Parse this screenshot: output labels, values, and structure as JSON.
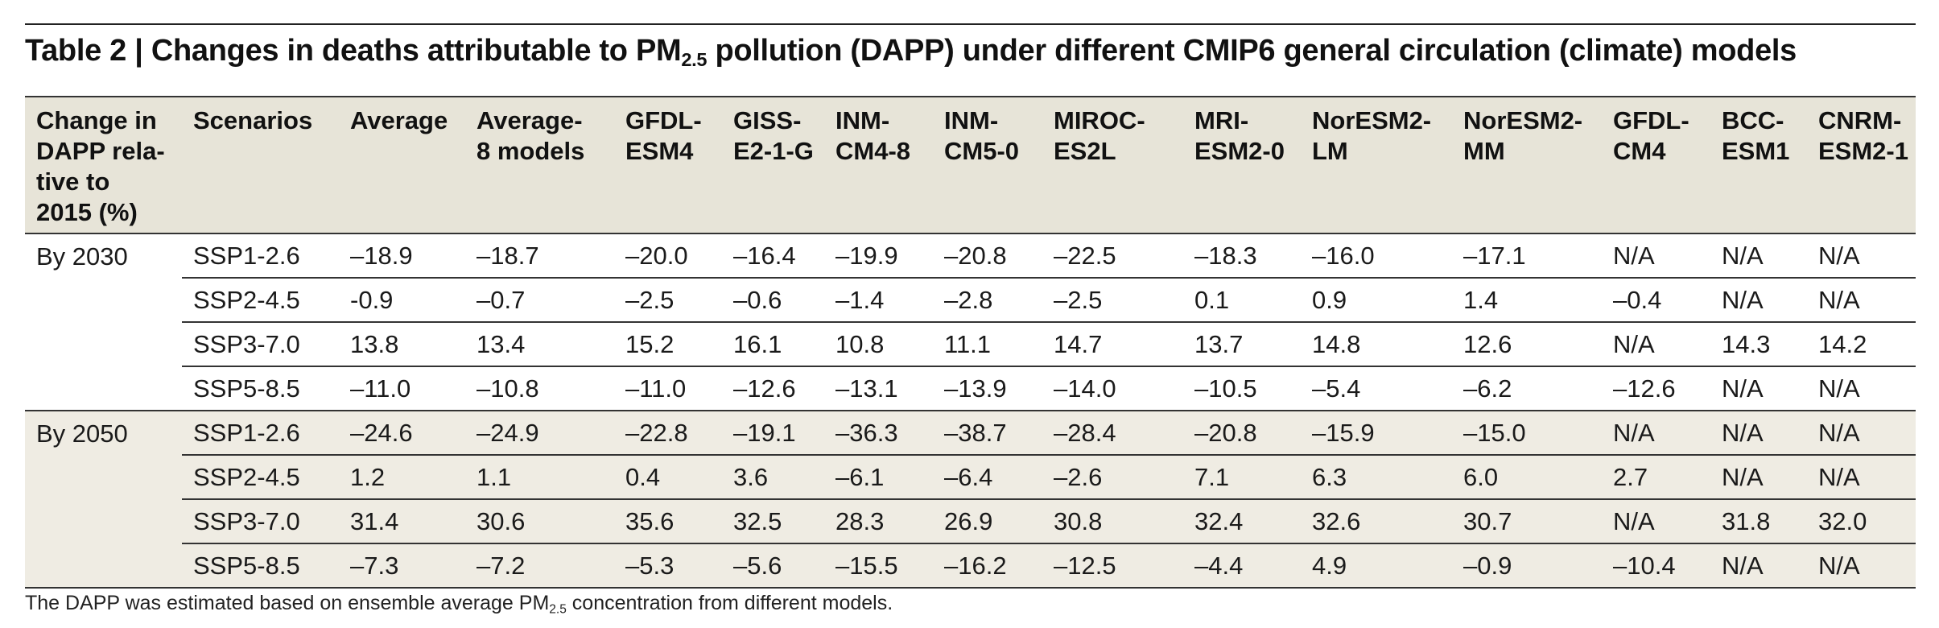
{
  "title": {
    "prefix": "Table 2 | Changes in deaths attributable to PM",
    "sub": "2.5",
    "suffix": " pollution (DAPP) under different CMIP6 general circulation (climate) models"
  },
  "headers": [
    [
      "Change in",
      "DAPP rela-",
      "tive to",
      "2015 (%)"
    ],
    [
      "Scenarios"
    ],
    [
      "Average"
    ],
    [
      "Average-",
      "8 models"
    ],
    [
      "GFDL-",
      "ESM4"
    ],
    [
      "GISS-",
      "E2-1-G"
    ],
    [
      "INM-",
      "CM4-8"
    ],
    [
      "INM-",
      "CM5-0"
    ],
    [
      "MIROC-",
      "ES2L"
    ],
    [
      "MRI-",
      "ESM2-0"
    ],
    [
      "NorESM2-",
      "LM"
    ],
    [
      "NorESM2-",
      "MM"
    ],
    [
      "GFDL-",
      "CM4"
    ],
    [
      "BCC-",
      "ESM1"
    ],
    [
      "CNRM-",
      "ESM2-1"
    ]
  ],
  "groups": [
    {
      "period": "By 2030",
      "rows": [
        [
          "SSP1-2.6",
          "–18.9",
          "–18.7",
          "–20.0",
          "–16.4",
          "–19.9",
          "–20.8",
          "–22.5",
          "–18.3",
          "–16.0",
          "–17.1",
          "N/A",
          "N/A",
          "N/A"
        ],
        [
          "SSP2-4.5",
          "-0.9",
          "–0.7",
          "–2.5",
          "–0.6",
          "–1.4",
          "–2.8",
          "–2.5",
          "0.1",
          "0.9",
          "1.4",
          "–0.4",
          "N/A",
          "N/A"
        ],
        [
          "SSP3-7.0",
          "13.8",
          "13.4",
          "15.2",
          "16.1",
          "10.8",
          "11.1",
          "14.7",
          "13.7",
          "14.8",
          "12.6",
          "N/A",
          "14.3",
          "14.2"
        ],
        [
          "SSP5-8.5",
          "–11.0",
          "–10.8",
          "–11.0",
          "–12.6",
          "–13.1",
          "–13.9",
          "–14.0",
          "–10.5",
          "–5.4",
          "–6.2",
          "–12.6",
          "N/A",
          "N/A"
        ]
      ]
    },
    {
      "period": "By 2050",
      "rows": [
        [
          "SSP1-2.6",
          "–24.6",
          "–24.9",
          "–22.8",
          "–19.1",
          "–36.3",
          "–38.7",
          "–28.4",
          "–20.8",
          "–15.9",
          "–15.0",
          "N/A",
          "N/A",
          "N/A"
        ],
        [
          "SSP2-4.5",
          "1.2",
          "1.1",
          "0.4",
          "3.6",
          "–6.1",
          "–6.4",
          "–2.6",
          "7.1",
          "6.3",
          "6.0",
          "2.7",
          "N/A",
          "N/A"
        ],
        [
          "SSP3-7.0",
          "31.4",
          "30.6",
          "35.6",
          "32.5",
          "28.3",
          "26.9",
          "30.8",
          "32.4",
          "32.6",
          "30.7",
          "N/A",
          "31.8",
          "32.0"
        ],
        [
          "SSP5-8.5",
          "–7.3",
          "–7.2",
          "–5.3",
          "–5.6",
          "–15.5",
          "–16.2",
          "–12.5",
          "–4.4",
          "4.9",
          "–0.9",
          "–10.4",
          "N/A",
          "N/A"
        ]
      ]
    }
  ],
  "footnote": {
    "prefix": "The DAPP was estimated based on ensemble average PM",
    "sub": "2.5",
    "suffix": " concentration from different models."
  },
  "colors": {
    "header_bg": "#e7e4d8",
    "shaded_bg": "#efece3",
    "rule": "#333333"
  }
}
